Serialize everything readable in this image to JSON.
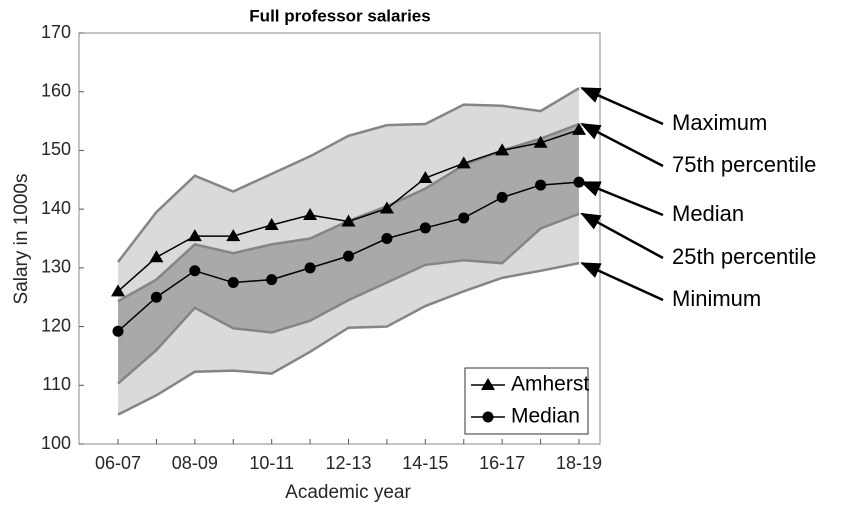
{
  "chart_data": {
    "type": "line",
    "title": "Full professor salaries",
    "xlabel": "Academic year",
    "ylabel": "Salary in 1000s",
    "categories": [
      "06-07",
      null,
      "08-09",
      null,
      "10-11",
      null,
      "12-13",
      null,
      "14-15",
      null,
      "16-17",
      null,
      "18-19"
    ],
    "ylim": [
      100,
      170
    ],
    "yticks": [
      100,
      110,
      120,
      130,
      140,
      150,
      160,
      170
    ],
    "grid": false,
    "legend": "lower right",
    "series": [
      {
        "name": "Amherst",
        "color": "#000000",
        "marker": "triangle",
        "values": [
          126,
          131.8,
          135.4,
          135.4,
          137.3,
          139,
          137.9,
          140.1,
          145.3,
          147.8,
          150,
          151.3,
          153.5
        ]
      },
      {
        "name": "Median",
        "color": "#000000",
        "marker": "circle",
        "values": [
          119.2,
          125,
          129.5,
          127.5,
          128,
          130,
          132,
          135,
          136.8,
          138.5,
          142,
          144.1,
          144.6
        ]
      }
    ],
    "band_line_color": "#858585",
    "outer_band_color": "#dadada",
    "inner_band_color": "#a9a9a9",
    "bands": [
      {
        "name": "Maximum",
        "values": [
          131,
          139.5,
          145.7,
          143,
          146,
          149,
          152.5,
          154.3,
          154.5,
          157.8,
          157.6,
          156.7,
          160.6
        ]
      },
      {
        "name": "75th percentile",
        "values": [
          124.3,
          128,
          134,
          132.5,
          134,
          135,
          138,
          140.5,
          143.5,
          147.5,
          150,
          152,
          154.5
        ]
      },
      {
        "name": "25th percentile",
        "values": [
          110.3,
          116,
          123.2,
          119.7,
          119,
          121,
          124.5,
          127.5,
          130.5,
          131.3,
          130.8,
          136.7,
          139.2
        ]
      },
      {
        "name": "Minimum",
        "values": [
          105,
          108.3,
          112.3,
          112.5,
          112,
          115.7,
          119.8,
          120,
          123.5,
          126,
          128.3,
          129.5,
          130.8
        ]
      }
    ]
  }
}
